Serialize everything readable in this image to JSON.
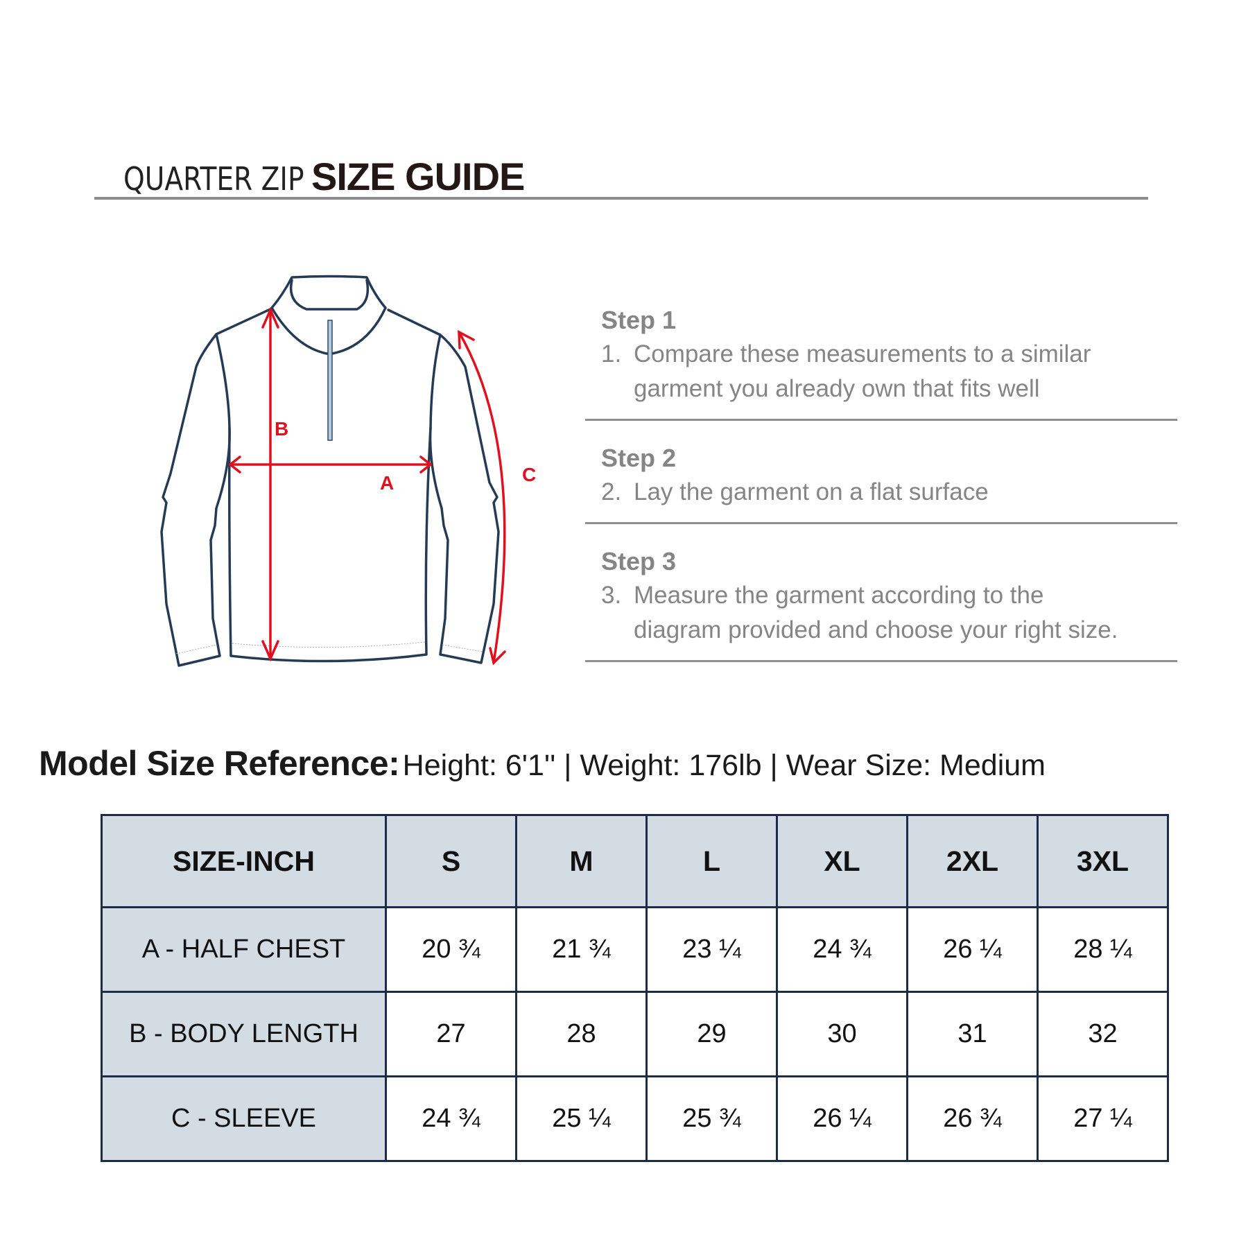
{
  "header": {
    "title_light": "QUARTER ZIP",
    "title_bold": "SIZE GUIDE"
  },
  "diagram": {
    "labels": {
      "a": "A",
      "b": "B",
      "c": "C"
    },
    "colors": {
      "outline": "#253a55",
      "measure": "#e0101e"
    }
  },
  "steps": [
    {
      "heading": "Step 1",
      "number": "1.",
      "lines": [
        "Compare these measurements to a similar",
        "garment you already own that fits well"
      ]
    },
    {
      "heading": "Step 2",
      "number": "2.",
      "lines": [
        "Lay the garment on a flat surface"
      ]
    },
    {
      "heading": "Step 3",
      "number": "3.",
      "lines": [
        "Measure the garment according to the",
        "diagram provided and choose your right size."
      ]
    }
  ],
  "model_reference": {
    "label": "Model Size Reference:",
    "details": "Height: 6'1'' |  Weight: 176lb |  Wear Size: Medium"
  },
  "size_table": {
    "header": [
      "SIZE-INCH",
      "S",
      "M",
      "L",
      "XL",
      "2XL",
      "3XL"
    ],
    "rows": [
      {
        "label": "A - HALF CHEST",
        "values": [
          "20 ¾",
          "21 ¾",
          "23 ¼",
          "24 ¾",
          "26 ¼",
          "28 ¼"
        ]
      },
      {
        "label": "B - BODY LENGTH",
        "values": [
          "27",
          "28",
          "29",
          "30",
          "31",
          "32"
        ]
      },
      {
        "label": "C - SLEEVE",
        "values": [
          "24 ¾",
          "25 ¼",
          "25 ¾",
          "26 ¼",
          "26 ¾",
          "27 ¼"
        ]
      }
    ],
    "colors": {
      "header_bg": "#d3dbe3",
      "border": "#1c2b4a"
    }
  }
}
